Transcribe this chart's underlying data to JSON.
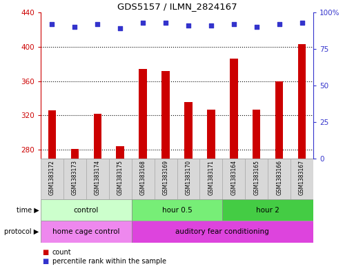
{
  "title": "GDS5157 / ILMN_2824167",
  "samples": [
    "GSM1383172",
    "GSM1383173",
    "GSM1383174",
    "GSM1383175",
    "GSM1383168",
    "GSM1383169",
    "GSM1383170",
    "GSM1383171",
    "GSM1383164",
    "GSM1383165",
    "GSM1383166",
    "GSM1383167"
  ],
  "counts": [
    326,
    281,
    322,
    284,
    374,
    372,
    336,
    327,
    386,
    327,
    360,
    403
  ],
  "percentile_ranks": [
    92,
    90,
    92,
    89,
    93,
    93,
    91,
    91,
    92,
    90,
    92,
    93
  ],
  "ymin": 270,
  "ymax": 440,
  "yticks": [
    280,
    320,
    360,
    400,
    440
  ],
  "right_yticks": [
    0,
    25,
    50,
    75,
    100
  ],
  "bar_color": "#cc0000",
  "dot_color": "#3333cc",
  "time_groups": [
    {
      "label": "control",
      "start": 0,
      "end": 4,
      "color": "#ccffcc"
    },
    {
      "label": "hour 0.5",
      "start": 4,
      "end": 8,
      "color": "#77ee77"
    },
    {
      "label": "hour 2",
      "start": 8,
      "end": 12,
      "color": "#44cc44"
    }
  ],
  "protocol_groups": [
    {
      "label": "home cage control",
      "start": 0,
      "end": 4,
      "color": "#ee88ee"
    },
    {
      "label": "auditory fear conditioning",
      "start": 4,
      "end": 12,
      "color": "#dd44dd"
    }
  ],
  "time_label": "time",
  "protocol_label": "protocol",
  "legend_count": "count",
  "legend_pct": "percentile rank within the sample",
  "bg_color": "#ffffff",
  "tick_color_left": "#cc0000",
  "tick_color_right": "#3333cc",
  "bar_width": 0.35
}
